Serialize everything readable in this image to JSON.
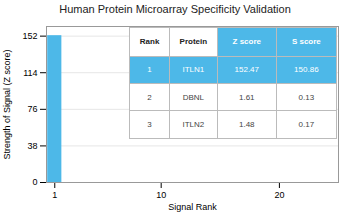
{
  "chart_data": {
    "type": "bar",
    "title": "Human Protein Microarray Specificity Validation",
    "xlabel": "Signal Rank",
    "ylabel": "Strength of Signal (Z score)",
    "x": [
      1
    ],
    "values": [
      152.47
    ],
    "color": "#4db8e8",
    "xlim": [
      0.3,
      25
    ],
    "xticks": [
      1,
      10,
      20
    ],
    "ylim": [
      0,
      162
    ],
    "yticks": [
      0,
      38,
      76,
      114,
      152
    ],
    "grid": true,
    "table": {
      "columns": [
        "Rank",
        "Protein",
        "Z score",
        "S score"
      ],
      "rows": [
        [
          "1",
          "ITLN1",
          "152.47",
          "150.86"
        ],
        [
          "2",
          "DBNL",
          "1.61",
          "0.13"
        ],
        [
          "3",
          "ITLN2",
          "1.48",
          "0.17"
        ]
      ]
    }
  }
}
